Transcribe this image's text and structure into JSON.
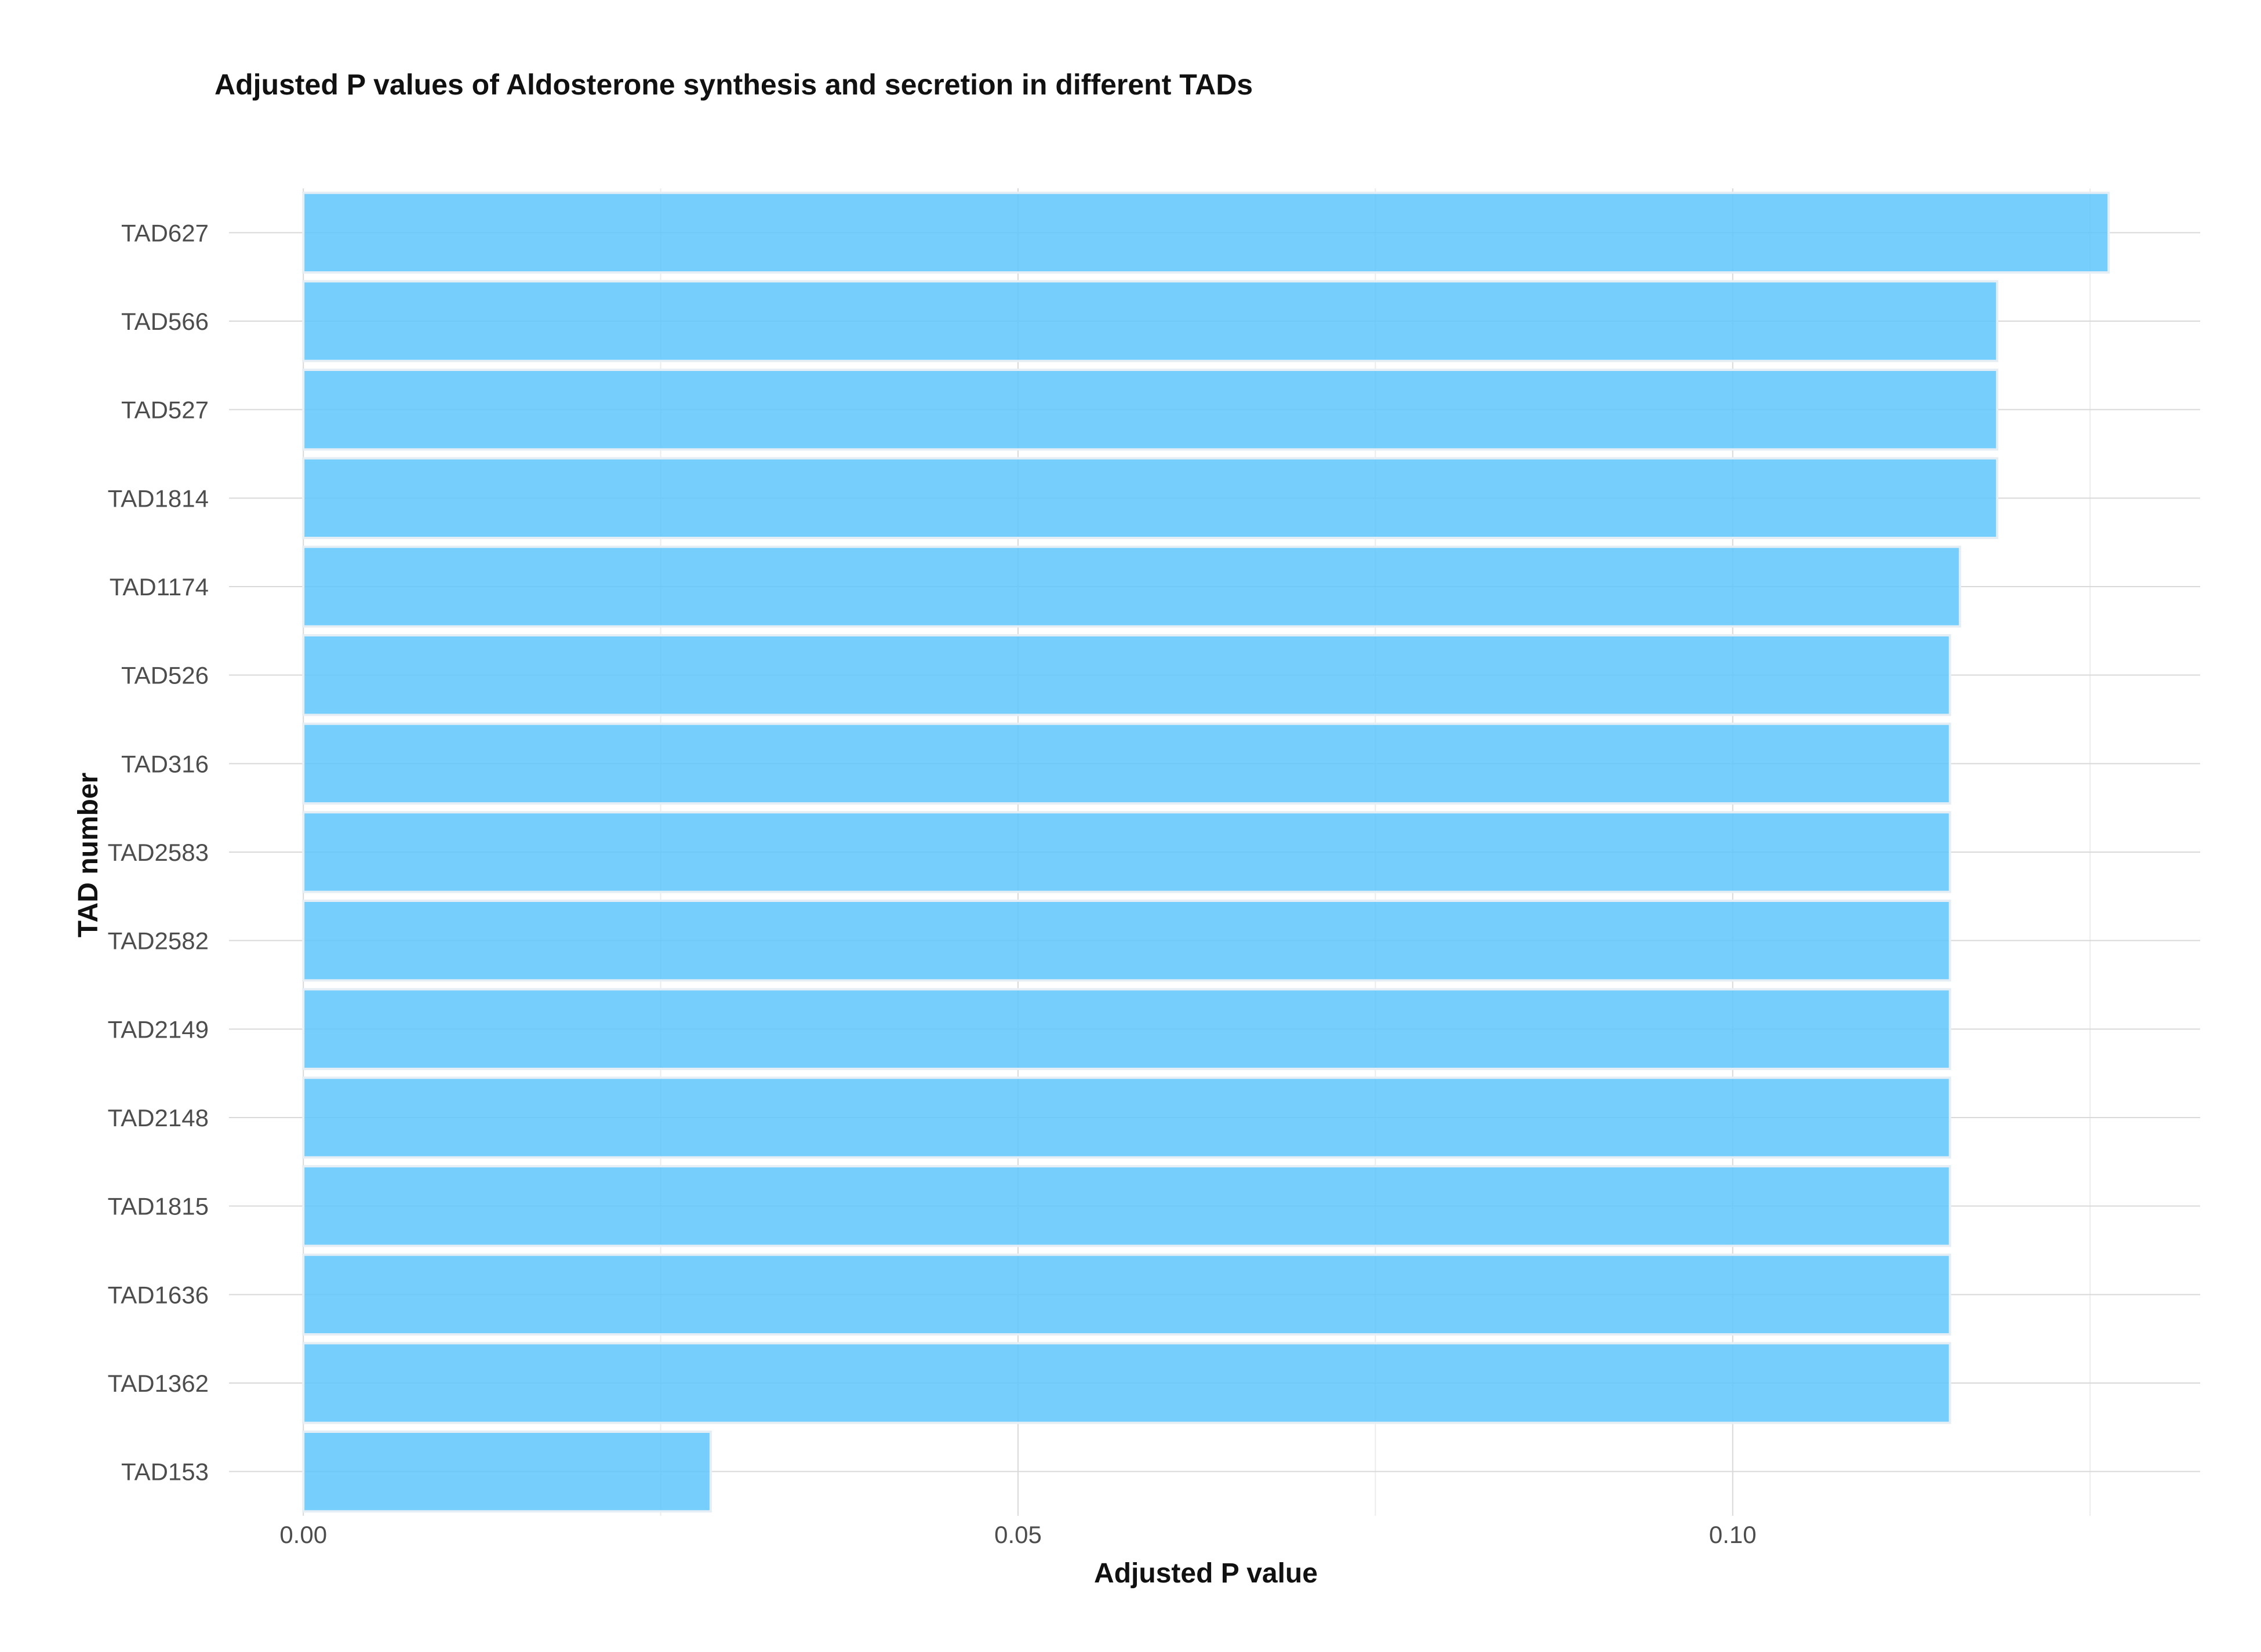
{
  "chart_data": {
    "type": "bar",
    "orientation": "horizontal",
    "title": "Adjusted P values of Aldosterone synthesis and secretion in different TADs",
    "xlabel": "Adjusted P value",
    "ylabel": "TAD number",
    "categories": [
      "TAD627",
      "TAD566",
      "TAD527",
      "TAD1814",
      "TAD1174",
      "TAD526",
      "TAD316",
      "TAD2583",
      "TAD2582",
      "TAD2149",
      "TAD2148",
      "TAD1815",
      "TAD1636",
      "TAD1362",
      "TAD153"
    ],
    "values": [
      0.1263,
      0.1185,
      0.1185,
      0.1185,
      0.1159,
      0.1152,
      0.1152,
      0.1152,
      0.1152,
      0.1152,
      0.1152,
      0.1152,
      0.1152,
      0.1152,
      0.0285
    ],
    "xlim": [
      -0.0052,
      0.1327
    ],
    "xticks": [
      0.0,
      0.05,
      0.1
    ],
    "xtick_labels": [
      "0.00",
      "0.05",
      "0.10"
    ],
    "x_minor_ticks": [
      0.025,
      0.075,
      0.125
    ],
    "bar_color": "#5ec5fb",
    "grid": true,
    "legend": "none"
  }
}
